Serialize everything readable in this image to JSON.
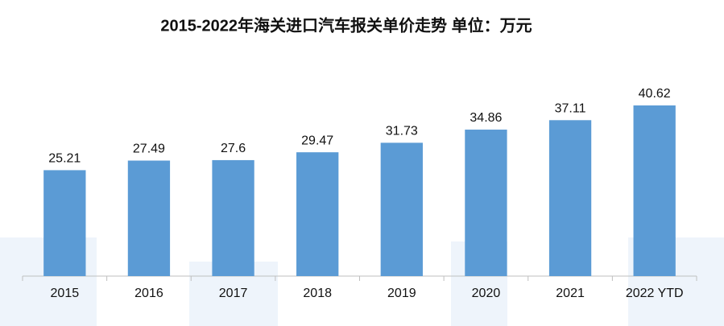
{
  "chart_data": {
    "type": "bar",
    "title": "2015-2022年海关进口汽车报关单价走势 单位：万元",
    "categories": [
      "2015",
      "2016",
      "2017",
      "2018",
      "2019",
      "2020",
      "2021",
      "2022 YTD"
    ],
    "values": [
      25.21,
      27.49,
      27.6,
      29.47,
      31.73,
      34.86,
      37.11,
      40.62
    ],
    "color": "#5b9bd5",
    "ylim": [
      0,
      50
    ]
  }
}
